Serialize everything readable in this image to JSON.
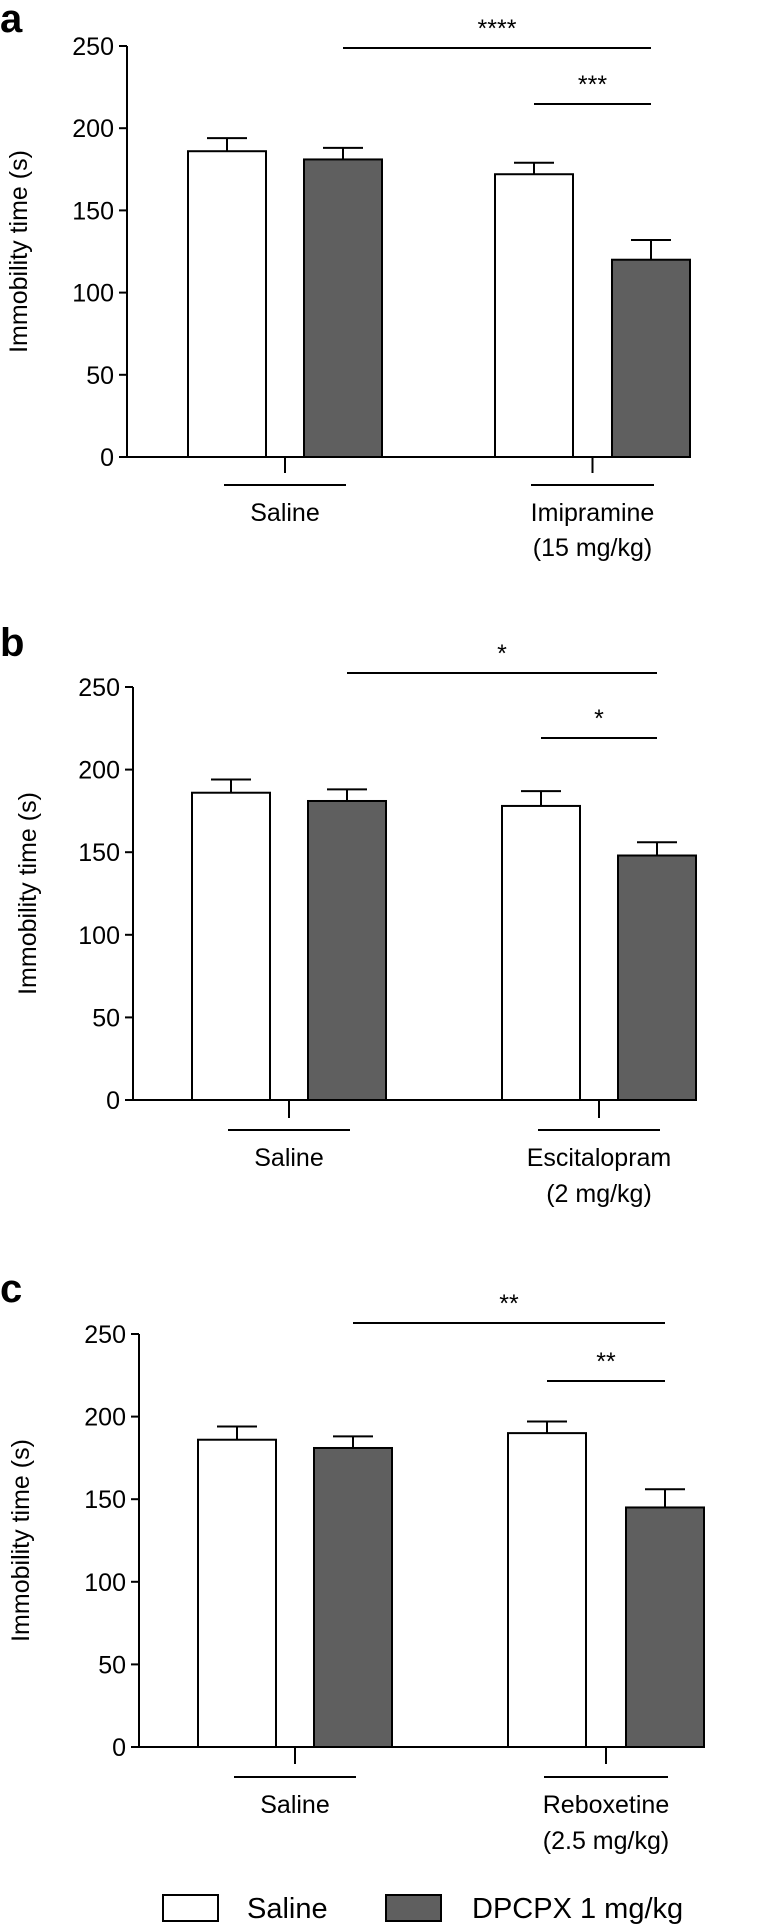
{
  "legend": {
    "items": [
      {
        "label": "Saline",
        "color": "#ffffff"
      },
      {
        "label": "DPCPX 1 mg/kg",
        "color": "#5f5f5f"
      }
    ]
  },
  "chart_data": [
    {
      "type": "bar",
      "panel_label": "a",
      "ylabel": "Immobility time (s)",
      "ylim": [
        0,
        250
      ],
      "yticks": [
        0,
        50,
        100,
        150,
        200,
        250
      ],
      "groups": [
        {
          "label_lines": [
            "Saline"
          ]
        },
        {
          "label_lines": [
            "Imipramine",
            "(15 mg/kg)"
          ]
        }
      ],
      "series": [
        {
          "name": "Saline",
          "color": "#ffffff",
          "values": [
            186,
            172
          ],
          "errors": [
            8,
            7
          ]
        },
        {
          "name": "DPCPX 1 mg/kg",
          "color": "#5f5f5f",
          "values": [
            181,
            120
          ],
          "errors": [
            7,
            12
          ]
        }
      ],
      "significance": [
        {
          "from": {
            "group": 0,
            "series": 1
          },
          "to": {
            "group": 1,
            "series": 1
          },
          "label": "****",
          "level": 2
        },
        {
          "from": {
            "group": 1,
            "series": 0
          },
          "to": {
            "group": 1,
            "series": 1
          },
          "label": "***",
          "level": 1
        }
      ]
    },
    {
      "type": "bar",
      "panel_label": "b",
      "ylabel": "Immobility time (s)",
      "ylim": [
        0,
        250
      ],
      "yticks": [
        0,
        50,
        100,
        150,
        200,
        250
      ],
      "groups": [
        {
          "label_lines": [
            "Saline"
          ]
        },
        {
          "label_lines": [
            "Escitalopram",
            "(2 mg/kg)"
          ]
        }
      ],
      "series": [
        {
          "name": "Saline",
          "color": "#ffffff",
          "values": [
            186,
            178
          ],
          "errors": [
            8,
            9
          ]
        },
        {
          "name": "DPCPX 1 mg/kg",
          "color": "#5f5f5f",
          "values": [
            181,
            148
          ],
          "errors": [
            7,
            8
          ]
        }
      ],
      "significance": [
        {
          "from": {
            "group": 0,
            "series": 1
          },
          "to": {
            "group": 1,
            "series": 1
          },
          "label": "*",
          "level": 2
        },
        {
          "from": {
            "group": 1,
            "series": 0
          },
          "to": {
            "group": 1,
            "series": 1
          },
          "label": "*",
          "level": 1
        }
      ]
    },
    {
      "type": "bar",
      "panel_label": "c",
      "ylabel": "Immobility time (s)",
      "ylim": [
        0,
        250
      ],
      "yticks": [
        0,
        50,
        100,
        150,
        200,
        250
      ],
      "groups": [
        {
          "label_lines": [
            "Saline"
          ]
        },
        {
          "label_lines": [
            "Reboxetine",
            "(2.5 mg/kg)"
          ]
        }
      ],
      "series": [
        {
          "name": "Saline",
          "color": "#ffffff",
          "values": [
            186,
            190
          ],
          "errors": [
            8,
            7
          ]
        },
        {
          "name": "DPCPX 1 mg/kg",
          "color": "#5f5f5f",
          "values": [
            181,
            145
          ],
          "errors": [
            7,
            11
          ]
        }
      ],
      "significance": [
        {
          "from": {
            "group": 0,
            "series": 1
          },
          "to": {
            "group": 1,
            "series": 1
          },
          "label": "**",
          "level": 2
        },
        {
          "from": {
            "group": 1,
            "series": 0
          },
          "to": {
            "group": 1,
            "series": 1
          },
          "label": "**",
          "level": 1
        }
      ]
    }
  ]
}
